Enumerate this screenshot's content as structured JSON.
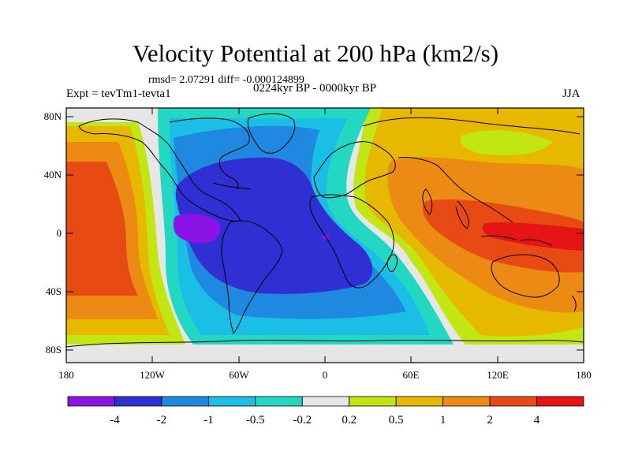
{
  "header": {
    "title": "Velocity Potential at 200 hPa (km2/s)",
    "stats": "rmsd= 2.07291  diff= -0.000124899",
    "experiment": "Expt = tevTm1-tevta1",
    "period": "0224kyr BP - 0000kyr BP",
    "season": "JJA"
  },
  "axes": {
    "lat_ticks": [
      "80N",
      "40N",
      "0",
      "40S",
      "80S"
    ],
    "lon_ticks": [
      "180",
      "120W",
      "60W",
      "0",
      "60E",
      "120E",
      "180"
    ]
  },
  "colorbar": {
    "labels": [
      "-4",
      "-2",
      "-1",
      "-0.5",
      "-0.2",
      "0.2",
      "0.5",
      "1",
      "2",
      "4"
    ],
    "colors": [
      "#8a14e6",
      "#2f2fd4",
      "#1f88e0",
      "#1bbfe6",
      "#22d8c2",
      "#e6e6e6",
      "#c2e614",
      "#e6b800",
      "#ec8a14",
      "#e84a14",
      "#e61414"
    ]
  },
  "colors": {
    "lowest": "#8a14e6",
    "neg_strong": "#2f2fd4",
    "neg_mid": "#1f88e0",
    "neg_weak": "#1bbfe6",
    "neg_faint": "#22d8c2",
    "near_zero": "#e6e6e6",
    "pos_faint": "#c2e614",
    "pos_weak": "#e6b800",
    "pos_mid": "#ec8a14",
    "pos_strong": "#e84a14",
    "highest": "#e61414"
  }
}
